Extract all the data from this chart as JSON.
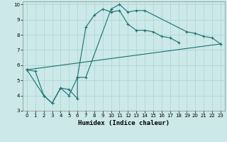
{
  "xlabel": "Humidex (Indice chaleur)",
  "background_color": "#cce8e8",
  "grid_color": "#a8d4d4",
  "line_color": "#1a7070",
  "xlim": [
    -0.5,
    23.5
  ],
  "ylim": [
    3,
    10.2
  ],
  "xticks": [
    0,
    1,
    2,
    3,
    4,
    5,
    6,
    7,
    8,
    9,
    10,
    11,
    12,
    13,
    14,
    15,
    16,
    17,
    18,
    19,
    20,
    21,
    22,
    23
  ],
  "yticks": [
    3,
    4,
    5,
    6,
    7,
    8,
    9,
    10
  ],
  "line1_x": [
    0,
    1,
    2,
    3,
    4,
    5,
    6,
    7,
    8,
    9,
    10,
    11,
    12,
    13,
    14,
    15,
    16,
    17,
    18
  ],
  "line1_y": [
    5.7,
    5.6,
    4.0,
    3.5,
    4.5,
    4.0,
    5.2,
    8.5,
    9.3,
    9.7,
    9.5,
    9.6,
    8.7,
    8.3,
    8.3,
    8.2,
    7.9,
    7.8,
    7.5
  ],
  "line2_x": [
    0,
    2,
    3,
    4,
    5,
    6,
    6,
    7,
    10,
    11,
    12,
    13,
    14,
    19,
    20,
    21,
    22,
    23
  ],
  "line2_y": [
    5.7,
    4.0,
    3.5,
    4.5,
    4.4,
    3.8,
    5.2,
    5.2,
    9.7,
    10.0,
    9.5,
    9.6,
    9.6,
    8.2,
    8.1,
    7.9,
    7.8,
    7.4
  ],
  "line3_x": [
    0,
    23
  ],
  "line3_y": [
    5.7,
    7.4
  ]
}
